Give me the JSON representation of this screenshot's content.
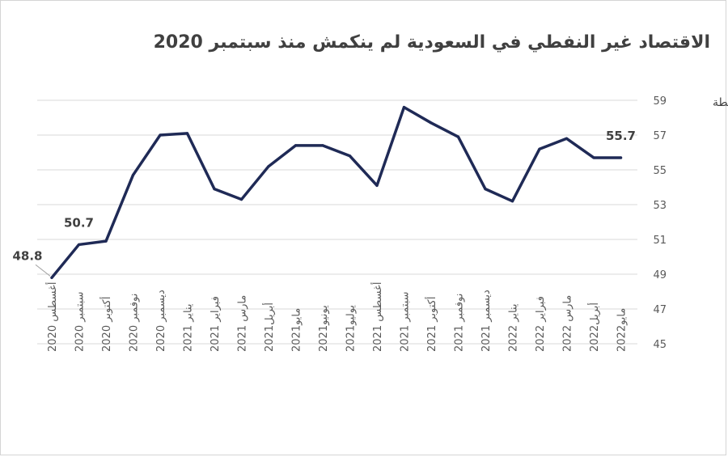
{
  "chart_data": {
    "type": "line",
    "title": "الاقتصاد غير النفطي في السعودية لم ينكمش منذ سبتمبر 2020",
    "ylabel": "نقطة",
    "ylim": [
      45,
      59
    ],
    "yticks": [
      45,
      47,
      49,
      51,
      53,
      55,
      57,
      59
    ],
    "grid": true,
    "line_color": "#1f2a56",
    "categories": [
      "أغسطس 2020",
      "سبتمبر 2020",
      "أكتوبر 2020",
      "نوفمبر 2020",
      "ديسمبر 2020",
      "يناير 2021",
      "فبراير 2021",
      "مارس 2021",
      "أبريل2021",
      "مايو2021",
      "يونيو2021",
      "يوليو2021",
      "أغسطس 2021",
      "سبتمبر 2021",
      "أكتوبر 2021",
      "نوفمبر 2021",
      "ديسمبر 2021",
      "يناير 2022",
      "فبراير 2022",
      "مارس 2022",
      "أبريل2022",
      "مايو2022"
    ],
    "values": [
      48.8,
      50.7,
      50.9,
      54.7,
      57.0,
      57.1,
      53.9,
      53.3,
      55.2,
      56.4,
      56.4,
      55.8,
      54.1,
      58.6,
      57.7,
      56.9,
      53.9,
      53.2,
      56.2,
      56.8,
      55.7,
      55.7
    ],
    "data_labels": [
      {
        "index": 0,
        "text": "48.8"
      },
      {
        "index": 1,
        "text": "50.7"
      },
      {
        "index": 21,
        "text": "55.7"
      }
    ]
  }
}
